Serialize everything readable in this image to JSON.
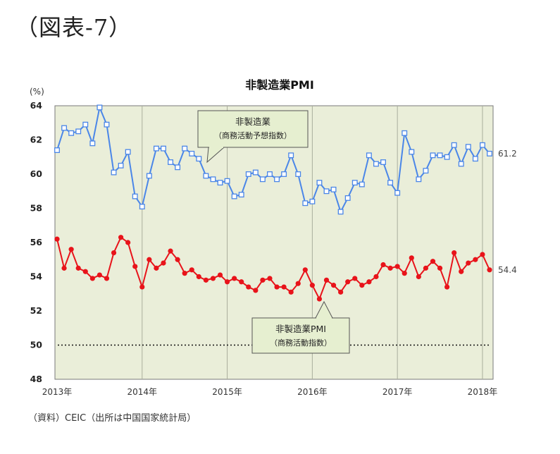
{
  "figure_label": "（図表-7）",
  "source_note": "（資料）CEIC（出所は中国国家統計局）",
  "colors": {
    "plot_bg": "#eaeed9",
    "blue": "#4a86e8",
    "red": "#e8131a",
    "callout_bg": "#e6efd0"
  },
  "chart_data": {
    "type": "line",
    "title": "非製造業PMI",
    "ylabel": "(%)",
    "ylim": [
      48,
      64
    ],
    "yticks": [
      48,
      50,
      52,
      54,
      56,
      58,
      60,
      62,
      64
    ],
    "xtick_labels": [
      "2013年",
      "2014年",
      "2015年",
      "2016年",
      "2017年",
      "2018年"
    ],
    "x_start": "2013-01",
    "x_end": "2018-02",
    "reference_line": 50,
    "grid": "vertical lines at each year",
    "series": [
      {
        "name": "非製造業（商務活動予想指数）",
        "marker": "square-open",
        "color": "#4a86e8",
        "end_label": "61.2",
        "values": [
          61.4,
          62.7,
          62.4,
          62.5,
          62.9,
          61.8,
          63.9,
          62.9,
          60.1,
          60.5,
          61.3,
          58.7,
          58.1,
          59.9,
          61.5,
          61.5,
          60.7,
          60.4,
          61.5,
          61.2,
          60.9,
          59.9,
          59.7,
          59.5,
          59.6,
          58.7,
          58.8,
          60.0,
          60.1,
          59.7,
          60.0,
          59.7,
          60.0,
          61.1,
          60.0,
          58.3,
          58.4,
          59.5,
          59.0,
          59.1,
          57.8,
          58.6,
          59.5,
          59.4,
          61.1,
          60.6,
          60.7,
          59.5,
          58.9,
          62.4,
          61.3,
          59.7,
          60.2,
          61.1,
          61.1,
          61.0,
          61.7,
          60.6,
          61.6,
          60.9,
          61.7,
          61.2
        ]
      },
      {
        "name": "非製造業PMI（商務活動指数）",
        "marker": "circle-filled",
        "color": "#e8131a",
        "end_label": "54.4",
        "values": [
          56.2,
          54.5,
          55.6,
          54.5,
          54.3,
          53.9,
          54.1,
          53.9,
          55.4,
          56.3,
          56.0,
          54.6,
          53.4,
          55.0,
          54.5,
          54.8,
          55.5,
          55.0,
          54.2,
          54.4,
          54.0,
          53.8,
          53.9,
          54.1,
          53.7,
          53.9,
          53.7,
          53.4,
          53.2,
          53.8,
          53.9,
          53.4,
          53.4,
          53.1,
          53.6,
          54.4,
          53.5,
          52.7,
          53.8,
          53.5,
          53.1,
          53.7,
          53.9,
          53.5,
          53.7,
          54.0,
          54.7,
          54.5,
          54.6,
          54.2,
          55.1,
          54.0,
          54.5,
          54.9,
          54.5,
          53.4,
          55.4,
          54.3,
          54.8,
          55.0,
          55.3,
          54.4
        ]
      }
    ],
    "annotations": [
      {
        "series": 0,
        "line1": "非製造業",
        "line2": "（商務活動予想指数）"
      },
      {
        "series": 1,
        "line1": "非製造業PMI",
        "line2": "（商務活動指数）"
      }
    ]
  }
}
